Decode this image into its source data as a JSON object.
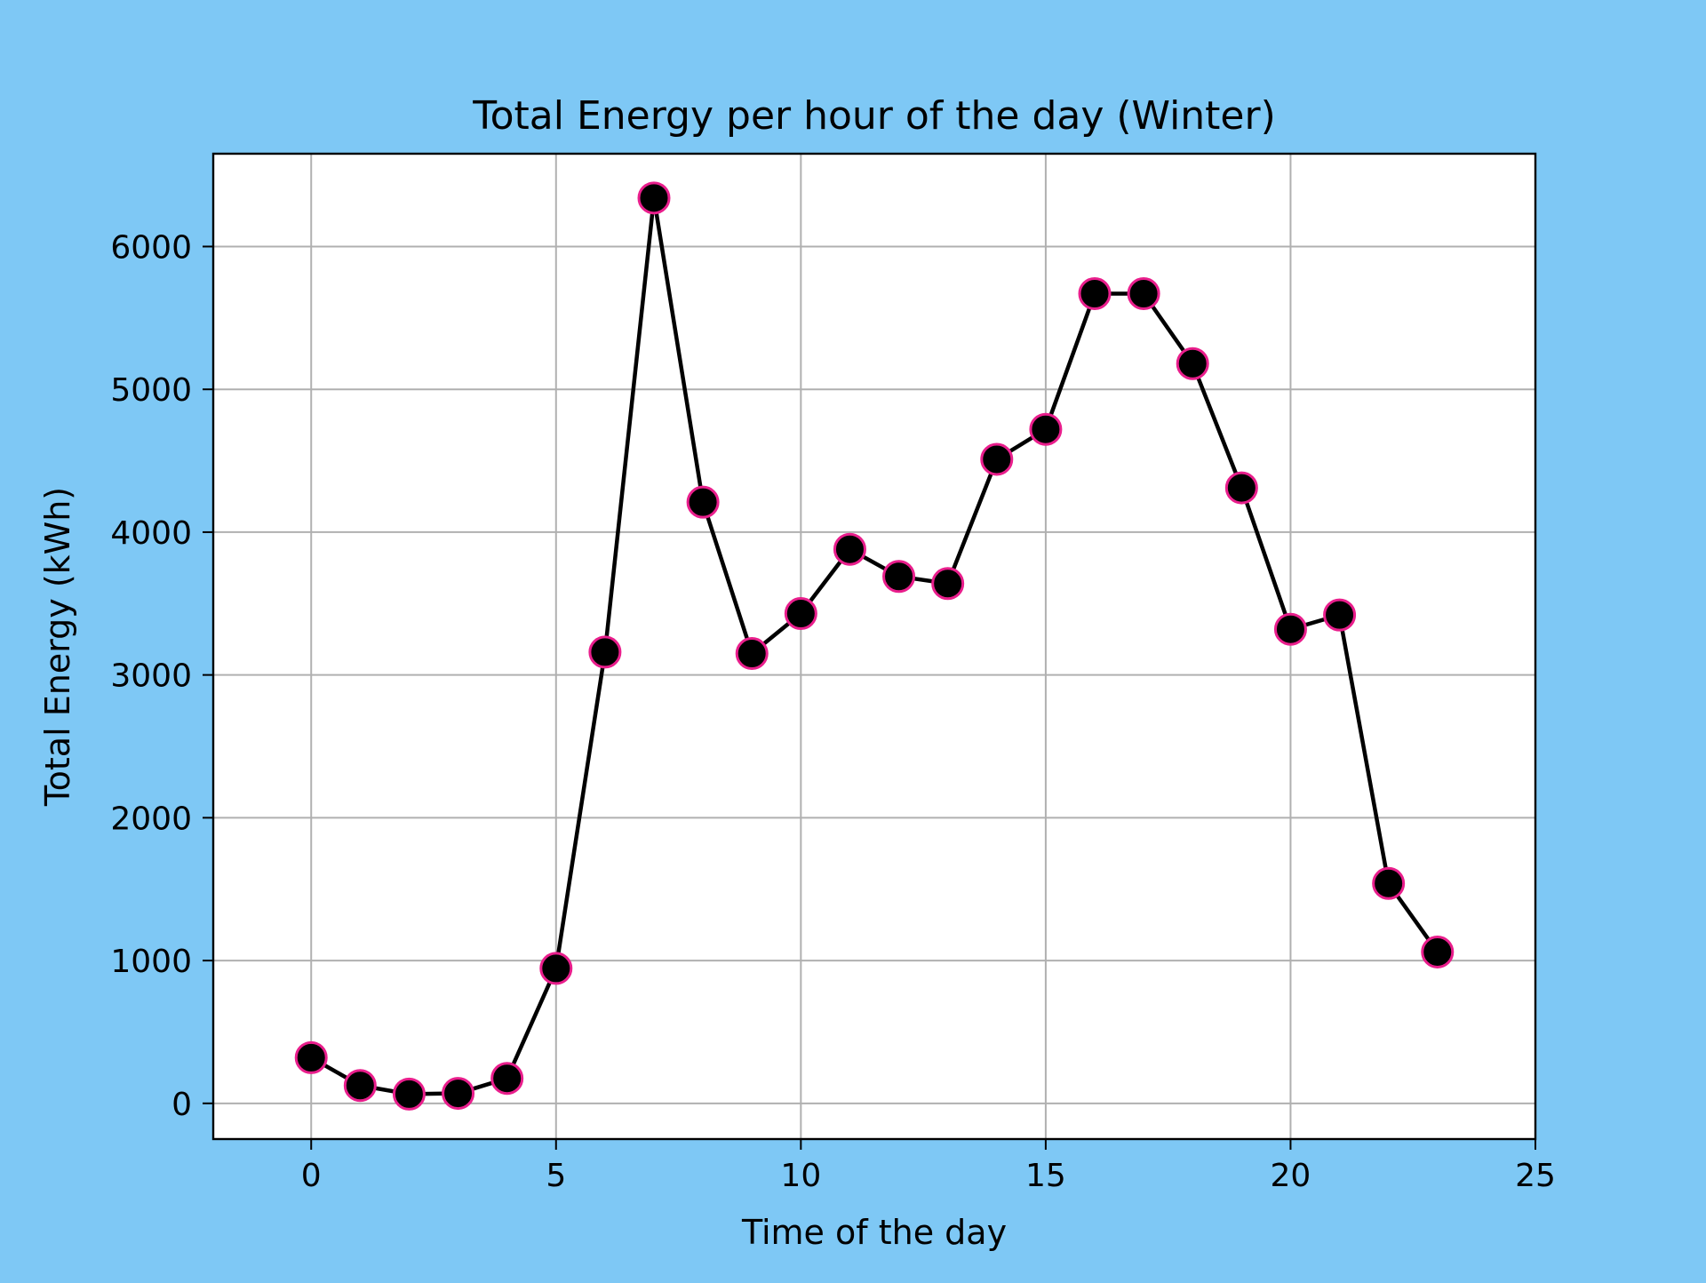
{
  "colors": {
    "figure_background": "#7ec8f5",
    "plot_background": "#ffffff",
    "line": "#000000",
    "marker_fill": "#000000",
    "marker_edge": "#e91e8c",
    "grid": "#b0b0b0"
  },
  "chart_data": {
    "type": "line",
    "title": "Total Energy per hour of the day (Winter)",
    "xlabel": "Time of the day",
    "ylabel": "Total Energy (kWh)",
    "xlim": [
      -2,
      25
    ],
    "ylim": [
      -250,
      6650
    ],
    "xticks": [
      0,
      5,
      10,
      15,
      20,
      25
    ],
    "yticks": [
      0,
      1000,
      2000,
      3000,
      4000,
      5000,
      6000
    ],
    "grid": true,
    "x": [
      0,
      1,
      2,
      3,
      4,
      5,
      6,
      7,
      8,
      9,
      10,
      11,
      12,
      13,
      14,
      15,
      16,
      17,
      18,
      19,
      20,
      21,
      22,
      23
    ],
    "series": [
      {
        "values": [
          320,
          125,
          65,
          70,
          175,
          945,
          3160,
          6340,
          4210,
          3150,
          3430,
          3880,
          3690,
          3640,
          4510,
          4720,
          5670,
          5670,
          5180,
          4310,
          3320,
          3420,
          1540,
          1060
        ],
        "marker": "circle"
      }
    ]
  }
}
